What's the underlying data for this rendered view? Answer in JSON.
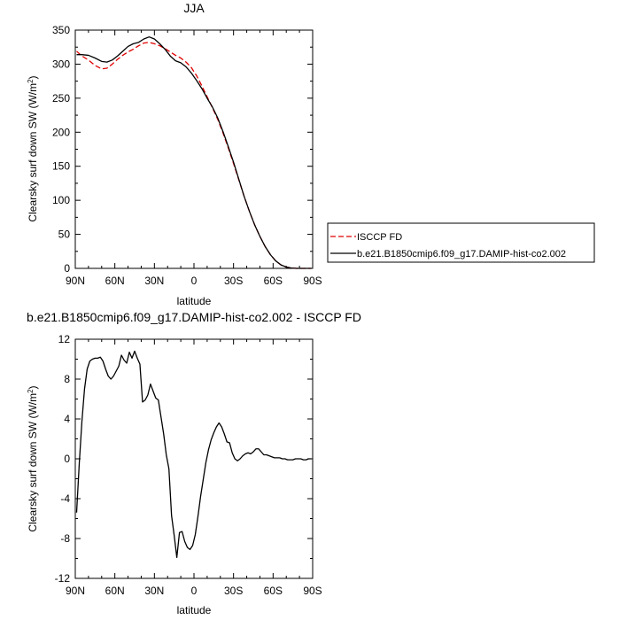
{
  "chart_data": [
    {
      "type": "line",
      "title": "JJA",
      "xlabel": "latitude",
      "ylabel": "Clearsky surf down SW (W/m",
      "ylabel_sup": "2",
      "ylabel_close": ")",
      "xlim": [
        90,
        -90
      ],
      "ylim": [
        0,
        350
      ],
      "xtick_values": [
        90,
        60,
        30,
        0,
        -30,
        -60,
        -90
      ],
      "xtick_labels": [
        "90N",
        "60N",
        "30N",
        "0",
        "30S",
        "60S",
        "90S"
      ],
      "ytick_values": [
        0,
        50,
        100,
        150,
        200,
        250,
        300,
        350
      ],
      "ytick_labels": [
        "0",
        "50",
        "100",
        "150",
        "200",
        "250",
        "300",
        "350"
      ],
      "legend_position": "right",
      "series": [
        {
          "name": "ISCCP FD",
          "color": "#e00000",
          "dash": "dashed",
          "x": [
            89,
            85,
            80,
            75,
            70,
            66,
            62,
            58,
            54,
            50,
            46,
            42,
            38,
            34,
            30,
            26,
            22,
            18,
            14,
            10,
            6,
            2,
            -2,
            -6,
            -10,
            -14,
            -18,
            -22,
            -26,
            -30,
            -34,
            -38,
            -42,
            -46,
            -50,
            -54,
            -58,
            -62,
            -66,
            -70,
            -74,
            -78,
            -82,
            -86,
            -89
          ],
          "y": [
            319,
            312,
            306,
            298,
            293,
            294,
            300,
            307,
            313,
            318,
            322,
            327,
            331,
            332,
            330,
            327,
            323,
            318,
            313,
            309,
            303,
            295,
            283,
            268,
            252,
            236,
            219,
            199,
            177,
            154,
            130,
            106,
            84,
            64,
            47,
            32,
            20,
            11,
            5,
            2,
            0.5,
            0,
            0,
            0,
            0
          ]
        },
        {
          "name": "b.e21.B1850cmip6.f09_g17.DAMIP-hist-co2.002",
          "color": "#000000",
          "dash": "solid",
          "x": [
            89,
            85,
            80,
            75,
            70,
            66,
            62,
            58,
            54,
            50,
            46,
            42,
            38,
            34,
            30,
            26,
            22,
            18,
            14,
            10,
            6,
            2,
            -2,
            -6,
            -10,
            -14,
            -18,
            -22,
            -26,
            -30,
            -34,
            -38,
            -42,
            -46,
            -50,
            -54,
            -58,
            -62,
            -66,
            -70,
            -74,
            -78,
            -82,
            -86,
            -89
          ],
          "y": [
            314,
            314,
            313,
            309,
            304,
            303,
            306,
            312,
            319,
            326,
            330,
            332,
            337,
            340,
            337,
            330,
            322,
            312,
            305,
            302,
            296,
            287,
            276,
            264,
            250,
            237,
            221,
            201,
            179,
            156,
            131,
            106,
            84,
            64,
            47,
            32,
            20,
            11,
            5,
            2,
            0.5,
            0,
            0,
            0,
            0
          ]
        }
      ]
    },
    {
      "type": "line",
      "title": "b.e21.B1850cmip6.f09_g17.DAMIP-hist-co2.002 - ISCCP FD",
      "xlabel": "latitude",
      "ylabel": "Clearsky surf down SW (W/m",
      "ylabel_sup": "2",
      "ylabel_close": ")",
      "xlim": [
        90,
        -90
      ],
      "ylim": [
        -12,
        12
      ],
      "xtick_values": [
        90,
        60,
        30,
        0,
        -30,
        -60,
        -90
      ],
      "xtick_labels": [
        "90N",
        "60N",
        "30N",
        "0",
        "30S",
        "60S",
        "90S"
      ],
      "ytick_values": [
        -12,
        -8,
        -4,
        0,
        4,
        8,
        12
      ],
      "ytick_labels": [
        "-12",
        "-8",
        "-4",
        "0",
        "4",
        "8",
        "12"
      ],
      "series": [
        {
          "color": "#000000",
          "dash": "solid",
          "x": [
            89,
            87,
            85,
            83,
            81,
            79,
            77,
            75,
            73,
            71,
            69,
            67,
            65,
            63,
            61,
            59,
            57,
            55,
            53,
            51,
            49,
            47,
            45,
            43,
            41,
            39,
            37,
            35,
            33,
            31,
            29,
            27,
            25,
            23,
            21,
            19,
            17,
            15,
            13,
            11,
            9,
            7,
            5,
            3,
            1,
            -1,
            -3,
            -5,
            -7,
            -9,
            -11,
            -13,
            -15,
            -17,
            -19,
            -21,
            -23,
            -25,
            -27,
            -29,
            -31,
            -33,
            -35,
            -37,
            -39,
            -41,
            -43,
            -45,
            -47,
            -49,
            -51,
            -53,
            -55,
            -57,
            -59,
            -61,
            -63,
            -65,
            -67,
            -69,
            -71,
            -73,
            -75,
            -77,
            -79,
            -81,
            -83,
            -85,
            -87,
            -89
          ],
          "y": [
            -5.4,
            -0.5,
            3.7,
            7.0,
            9.0,
            9.8,
            10.0,
            10.1,
            10.1,
            10.2,
            9.8,
            9.0,
            8.3,
            8.0,
            8.3,
            8.8,
            9.3,
            10.4,
            9.9,
            9.6,
            10.7,
            10.1,
            10.8,
            10.1,
            9.5,
            5.7,
            5.9,
            6.4,
            7.5,
            6.8,
            6.1,
            5.9,
            4.2,
            2.5,
            0.4,
            -1.0,
            -5.7,
            -7.7,
            -9.9,
            -7.4,
            -7.3,
            -8.3,
            -8.9,
            -9.1,
            -8.7,
            -7.6,
            -5.8,
            -3.8,
            -2.1,
            -0.4,
            0.9,
            1.9,
            2.6,
            3.2,
            3.6,
            3.2,
            2.5,
            1.7,
            1.6,
            0.6,
            0.0,
            -0.2,
            0.0,
            0.3,
            0.5,
            0.6,
            0.5,
            0.7,
            1.0,
            1.0,
            0.7,
            0.4,
            0.4,
            0.3,
            0.2,
            0.1,
            0.1,
            0.1,
            0.0,
            0.0,
            -0.1,
            -0.1,
            -0.1,
            0.0,
            0.0,
            0.0,
            -0.1,
            -0.1,
            0.0,
            0.0
          ]
        }
      ]
    }
  ]
}
